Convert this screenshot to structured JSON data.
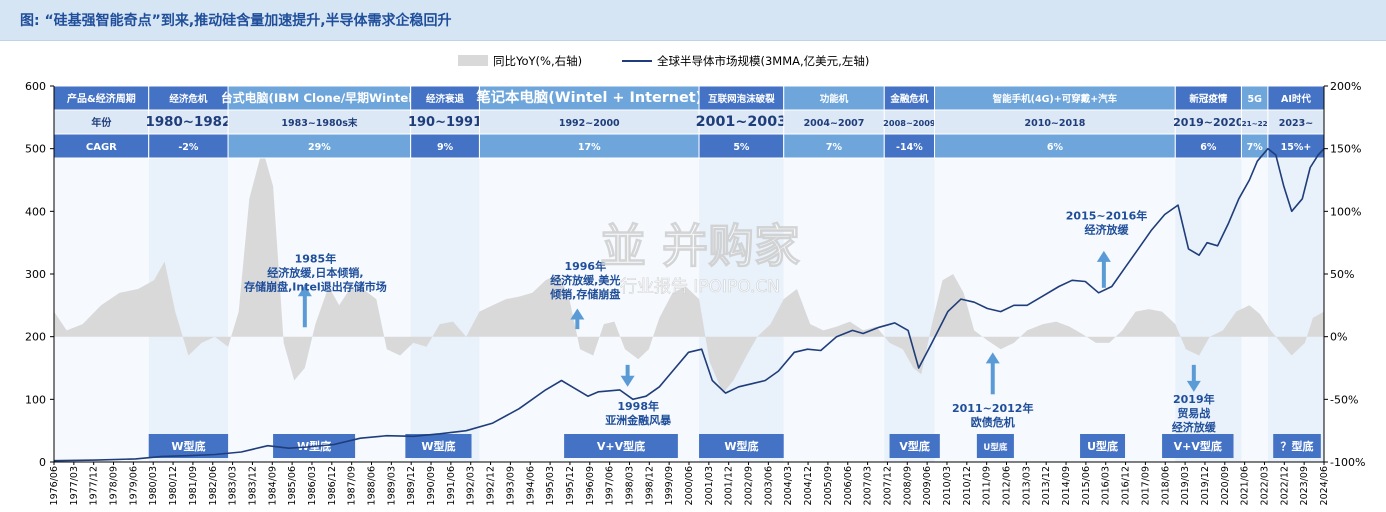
{
  "title": "图:   “硅基强智能奇点”到来,推动硅含量加速提升,半导体需求企稳回升",
  "watermark_main": "並 并购家",
  "watermark_sub": "行业报告 IPOIPO.CN",
  "colors": {
    "line": "#1f3d7a",
    "bars": "#d9d9d9",
    "header_dark": "#4472c4",
    "header_light": "#6ea6dc",
    "annotation": "#1f4e9a",
    "arrow": "#5b9bd5"
  },
  "chart_data": {
    "type": "line",
    "legend": [
      "同比YoY(%,右轴)",
      "全球半导体市场规模(3MMA,亿美元,左轴)"
    ],
    "legend_placement": "top-center",
    "ylim_left": [
      0,
      600
    ],
    "yticks_left": [
      "0",
      "100",
      "200",
      "300",
      "400",
      "500",
      "600"
    ],
    "ylim_right": [
      -100,
      200
    ],
    "yticks_right": [
      "-100%",
      "-50%",
      "0%",
      "50%",
      "100%",
      "150%",
      "200%"
    ],
    "x_range": [
      1976.42,
      2024.42
    ],
    "xtick_labels": [
      "1976/06",
      "1977/03",
      "1977/12",
      "1978/09",
      "1979/06",
      "1980/03",
      "1980/12",
      "1981/09",
      "1982/06",
      "1983/03",
      "1983/12",
      "1984/09",
      "1985/06",
      "1986/03",
      "1986/12",
      "1987/09",
      "1988/06",
      "1989/03",
      "1989/12",
      "1990/09",
      "1991/06",
      "1992/03",
      "1992/12",
      "1993/09",
      "1994/06",
      "1995/03",
      "1995/12",
      "1996/09",
      "1997/06",
      "1998/03",
      "1998/12",
      "1999/09",
      "2000/06",
      "2001/03",
      "2001/12",
      "2002/09",
      "2003/06",
      "2004/03",
      "2004/12",
      "2005/09",
      "2006/06",
      "2007/03",
      "2007/12",
      "2008/09",
      "2009/06",
      "2010/03",
      "2010/12",
      "2011/09",
      "2012/06",
      "2013/03",
      "2013/12",
      "2014/09",
      "2015/06",
      "2016/03",
      "2016/12",
      "2017/09",
      "2018/06",
      "2019/03",
      "2019/12",
      "2020/09",
      "2021/06",
      "2022/03",
      "2022/12",
      "2023/09",
      "2024/06"
    ],
    "market_size": {
      "name": "全球半导体市场规模(3MMA,亿美元,左轴)",
      "points": [
        [
          1976.42,
          2
        ],
        [
          1978.0,
          3
        ],
        [
          1979.5,
          5
        ],
        [
          1980.5,
          9
        ],
        [
          1981.5,
          10
        ],
        [
          1982.5,
          12
        ],
        [
          1983.5,
          16
        ],
        [
          1984.5,
          26
        ],
        [
          1985.3,
          22
        ],
        [
          1986.0,
          24
        ],
        [
          1987.0,
          28
        ],
        [
          1988.0,
          38
        ],
        [
          1989.0,
          42
        ],
        [
          1990.0,
          41
        ],
        [
          1991.0,
          45
        ],
        [
          1992.0,
          50
        ],
        [
          1993.0,
          62
        ],
        [
          1994.0,
          85
        ],
        [
          1995.0,
          115
        ],
        [
          1995.6,
          130
        ],
        [
          1996.0,
          120
        ],
        [
          1996.6,
          105
        ],
        [
          1997.0,
          112
        ],
        [
          1997.8,
          115
        ],
        [
          1998.3,
          100
        ],
        [
          1998.8,
          105
        ],
        [
          1999.3,
          120
        ],
        [
          1999.8,
          145
        ],
        [
          2000.4,
          175
        ],
        [
          2000.9,
          180
        ],
        [
          2001.3,
          130
        ],
        [
          2001.8,
          110
        ],
        [
          2002.3,
          120
        ],
        [
          2002.8,
          125
        ],
        [
          2003.3,
          130
        ],
        [
          2003.8,
          145
        ],
        [
          2004.4,
          175
        ],
        [
          2004.9,
          180
        ],
        [
          2005.4,
          178
        ],
        [
          2006.0,
          200
        ],
        [
          2006.6,
          210
        ],
        [
          2007.0,
          205
        ],
        [
          2007.6,
          215
        ],
        [
          2008.2,
          222
        ],
        [
          2008.7,
          210
        ],
        [
          2009.1,
          150
        ],
        [
          2009.6,
          190
        ],
        [
          2010.2,
          240
        ],
        [
          2010.7,
          260
        ],
        [
          2011.2,
          255
        ],
        [
          2011.7,
          245
        ],
        [
          2012.2,
          240
        ],
        [
          2012.7,
          250
        ],
        [
          2013.2,
          250
        ],
        [
          2013.8,
          265
        ],
        [
          2014.4,
          280
        ],
        [
          2014.9,
          290
        ],
        [
          2015.4,
          288
        ],
        [
          2015.9,
          270
        ],
        [
          2016.4,
          280
        ],
        [
          2016.9,
          310
        ],
        [
          2017.4,
          340
        ],
        [
          2017.9,
          370
        ],
        [
          2018.4,
          395
        ],
        [
          2018.9,
          410
        ],
        [
          2019.3,
          340
        ],
        [
          2019.7,
          330
        ],
        [
          2020.0,
          350
        ],
        [
          2020.4,
          345
        ],
        [
          2020.8,
          380
        ],
        [
          2021.2,
          420
        ],
        [
          2021.6,
          450
        ],
        [
          2021.9,
          480
        ],
        [
          2022.3,
          500
        ],
        [
          2022.6,
          490
        ],
        [
          2022.9,
          440
        ],
        [
          2023.2,
          400
        ],
        [
          2023.6,
          420
        ],
        [
          2023.9,
          470
        ],
        [
          2024.2,
          490
        ],
        [
          2024.42,
          500
        ]
      ]
    },
    "yoy": {
      "name": "同比YoY(%,右轴)",
      "points": [
        [
          1976.42,
          20
        ],
        [
          1976.9,
          5
        ],
        [
          1977.5,
          10
        ],
        [
          1978.2,
          25
        ],
        [
          1978.9,
          35
        ],
        [
          1979.6,
          38
        ],
        [
          1980.2,
          45
        ],
        [
          1980.6,
          60
        ],
        [
          1981.0,
          20
        ],
        [
          1981.5,
          -15
        ],
        [
          1982.0,
          -5
        ],
        [
          1982.5,
          0
        ],
        [
          1983.0,
          -8
        ],
        [
          1983.4,
          20
        ],
        [
          1983.8,
          110
        ],
        [
          1984.3,
          150
        ],
        [
          1984.7,
          120
        ],
        [
          1985.1,
          -5
        ],
        [
          1985.5,
          -35
        ],
        [
          1985.9,
          -25
        ],
        [
          1986.3,
          10
        ],
        [
          1986.8,
          40
        ],
        [
          1987.2,
          25
        ],
        [
          1987.6,
          38
        ],
        [
          1988.1,
          38
        ],
        [
          1988.6,
          30
        ],
        [
          1989.0,
          -10
        ],
        [
          1989.5,
          -15
        ],
        [
          1990.0,
          -5
        ],
        [
          1990.5,
          -8
        ],
        [
          1991.0,
          10
        ],
        [
          1991.5,
          12
        ],
        [
          1992.0,
          0
        ],
        [
          1992.5,
          20
        ],
        [
          1993.0,
          25
        ],
        [
          1993.5,
          30
        ],
        [
          1994.0,
          32
        ],
        [
          1994.5,
          35
        ],
        [
          1995.0,
          45
        ],
        [
          1995.5,
          50
        ],
        [
          1995.9,
          30
        ],
        [
          1996.3,
          -10
        ],
        [
          1996.8,
          -15
        ],
        [
          1997.2,
          10
        ],
        [
          1997.6,
          12
        ],
        [
          1998.0,
          -10
        ],
        [
          1998.5,
          -18
        ],
        [
          1998.9,
          -10
        ],
        [
          1999.3,
          15
        ],
        [
          1999.8,
          35
        ],
        [
          2000.3,
          40
        ],
        [
          2000.8,
          30
        ],
        [
          2001.2,
          -20
        ],
        [
          2001.7,
          -45
        ],
        [
          2002.1,
          -35
        ],
        [
          2002.6,
          -15
        ],
        [
          2003.0,
          0
        ],
        [
          2003.5,
          10
        ],
        [
          2004.0,
          30
        ],
        [
          2004.5,
          38
        ],
        [
          2005.0,
          10
        ],
        [
          2005.5,
          5
        ],
        [
          2006.0,
          8
        ],
        [
          2006.5,
          12
        ],
        [
          2007.0,
          5
        ],
        [
          2007.5,
          8
        ],
        [
          2008.0,
          -5
        ],
        [
          2008.5,
          -10
        ],
        [
          2008.9,
          -25
        ],
        [
          2009.2,
          -30
        ],
        [
          2009.6,
          10
        ],
        [
          2010.0,
          45
        ],
        [
          2010.4,
          50
        ],
        [
          2010.8,
          35
        ],
        [
          2011.2,
          5
        ],
        [
          2011.7,
          -3
        ],
        [
          2012.2,
          -10
        ],
        [
          2012.7,
          -5
        ],
        [
          2013.2,
          5
        ],
        [
          2013.8,
          10
        ],
        [
          2014.3,
          12
        ],
        [
          2014.8,
          8
        ],
        [
          2015.3,
          2
        ],
        [
          2015.8,
          -5
        ],
        [
          2016.3,
          -5
        ],
        [
          2016.8,
          5
        ],
        [
          2017.3,
          20
        ],
        [
          2017.8,
          22
        ],
        [
          2018.3,
          20
        ],
        [
          2018.8,
          10
        ],
        [
          2019.2,
          -10
        ],
        [
          2019.7,
          -15
        ],
        [
          2020.1,
          0
        ],
        [
          2020.6,
          5
        ],
        [
          2021.1,
          20
        ],
        [
          2021.6,
          25
        ],
        [
          2022.0,
          18
        ],
        [
          2022.4,
          5
        ],
        [
          2022.8,
          -5
        ],
        [
          2023.2,
          -15
        ],
        [
          2023.7,
          -5
        ],
        [
          2024.0,
          15
        ],
        [
          2024.42,
          20
        ]
      ]
    },
    "header_rows": {
      "labels": [
        "产品&经济周期",
        "年份",
        "CAGR"
      ],
      "periods": [
        {
          "cycle": "经济危机",
          "years": "1980~1982",
          "cagr": "-2%",
          "x0": 1980.0,
          "x1": 1983.0
        },
        {
          "cycle": "台式电脑(IBM Clone/早期Wintel)",
          "years": "1983~1980s末",
          "cagr": "29%",
          "x0": 1983.0,
          "x1": 1989.9
        },
        {
          "cycle": "经济衰退",
          "years": "190~1991",
          "cagr": "9%",
          "x0": 1989.9,
          "x1": 1992.5
        },
        {
          "cycle": "笔记本电脑(Wintel + Internet)",
          "years": "1992~2000",
          "cagr": "17%",
          "x0": 1992.5,
          "x1": 2000.8
        },
        {
          "cycle": "互联网泡沫破裂",
          "years": "2001~2003",
          "cagr": "5%",
          "x0": 2000.8,
          "x1": 2004.0
        },
        {
          "cycle": "功能机",
          "years": "2004~2007",
          "cagr": "7%",
          "x0": 2004.0,
          "x1": 2007.8
        },
        {
          "cycle": "金融危机",
          "years": "2008~2009",
          "cagr": "-14%",
          "x0": 2007.8,
          "x1": 2009.7
        },
        {
          "cycle": "智能手机(4G)+可穿戴+汽车",
          "years": "2010~2018",
          "cagr": "6%",
          "x0": 2009.7,
          "x1": 2018.8
        },
        {
          "cycle": "新冠疫情",
          "years": "2019~2020",
          "cagr": "6%",
          "x0": 2018.8,
          "x1": 2021.3
        },
        {
          "cycle": "5G",
          "years": "21~22",
          "cagr": "7%",
          "x0": 2021.3,
          "x1": 2022.3
        },
        {
          "cycle": "AI时代",
          "years": "2023~",
          "cagr": "15%+",
          "x0": 2022.3,
          "x1": 2024.42
        }
      ]
    },
    "bottom_labels": [
      {
        "text": "W型底",
        "x0": 1980.0,
        "x1": 1983.0
      },
      {
        "text": "W型底",
        "x0": 1984.7,
        "x1": 1987.8
      },
      {
        "text": "W型底",
        "x0": 1989.7,
        "x1": 1992.2
      },
      {
        "text": "V+V型底",
        "x0": 1995.7,
        "x1": 2000.0
      },
      {
        "text": "W型底",
        "x0": 2000.8,
        "x1": 2004.0
      },
      {
        "text": "V型底",
        "x0": 2008.0,
        "x1": 2009.9
      },
      {
        "text": "U型底",
        "x0": 2011.3,
        "x1": 2012.7
      },
      {
        "text": "U型底",
        "x0": 2015.2,
        "x1": 2016.9
      },
      {
        "text": "V+V型底",
        "x0": 2018.3,
        "x1": 2021.0
      },
      {
        "text": "？型底",
        "x0": 2022.5,
        "x1": 2024.3
      }
    ],
    "annotations": [
      {
        "lines": [
          "1985年",
          "经济放缓,日本倾销,",
          "存储崩盘,Intel退出存储市场"
        ],
        "x": 1986.3,
        "y": 318,
        "arrow": "up",
        "ax": 1985.9,
        "ay0": 215,
        "ay1": 282
      },
      {
        "lines": [
          "1996年",
          "经济放缓,美光",
          "倾销,存储崩盘"
        ],
        "x": 1996.5,
        "y": 306,
        "arrow": "up",
        "ax": 1996.2,
        "ay0": 212,
        "ay1": 245
      },
      {
        "lines": [
          "1998年",
          "亚洲金融风暴"
        ],
        "x": 1998.5,
        "y": 83,
        "arrow": "down",
        "ax": 1998.1,
        "ay0": 155,
        "ay1": 120
      },
      {
        "lines": [
          "2011~2012年",
          "欧债危机"
        ],
        "x": 2011.9,
        "y": 80,
        "arrow": "up",
        "ax": 2011.9,
        "ay0": 108,
        "ay1": 175
      },
      {
        "lines": [
          "2015~2016年",
          "经济放缓"
        ],
        "x": 2016.2,
        "y": 387,
        "arrow": "up",
        "ax": 2016.1,
        "ay0": 278,
        "ay1": 337
      },
      {
        "lines": [
          "2019年",
          "贸易战",
          "经济放缓"
        ],
        "x": 2019.5,
        "y": 94,
        "arrow": "down",
        "ax": 2019.5,
        "ay0": 155,
        "ay1": 112
      }
    ]
  }
}
